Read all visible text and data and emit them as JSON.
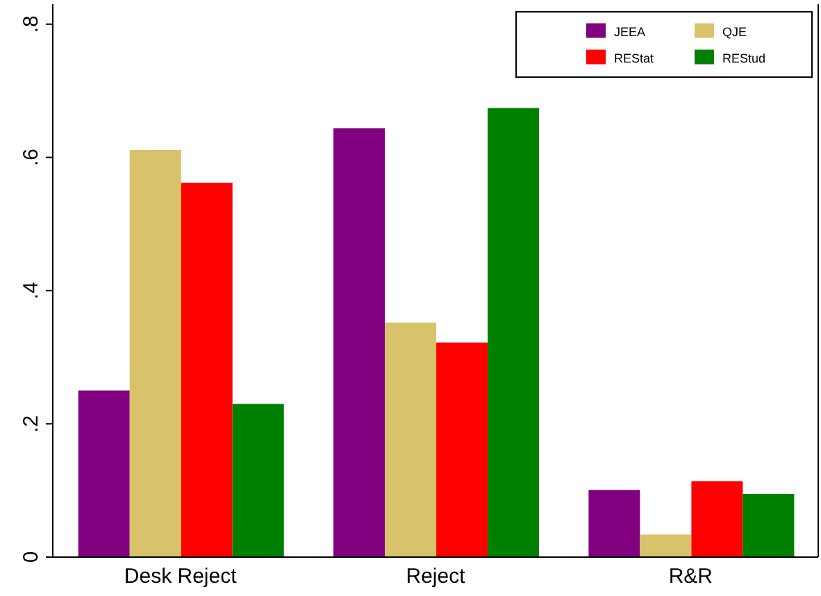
{
  "chart_data": {
    "type": "bar",
    "categories": [
      "Desk Reject",
      "Reject",
      "R&R"
    ],
    "series": [
      {
        "name": "JEEA",
        "color": "#800080",
        "values": [
          0.25,
          0.644,
          0.101
        ]
      },
      {
        "name": "QJE",
        "color": "#d9c36a",
        "values": [
          0.611,
          0.352,
          0.034
        ]
      },
      {
        "name": "REStat",
        "color": "#ff0000",
        "values": [
          0.562,
          0.322,
          0.114
        ]
      },
      {
        "name": "REStud",
        "color": "#008000",
        "values": [
          0.23,
          0.674,
          0.095
        ]
      }
    ],
    "ylim": [
      0,
      0.83
    ],
    "yticks": [
      0,
      {
        "value": 0.2,
        "label": ".2"
      },
      {
        "value": 0.4,
        "label": ".4"
      },
      {
        "value": 0.6,
        "label": ".6"
      },
      {
        "value": 0.8,
        "label": ".8"
      }
    ],
    "legend": "top right"
  }
}
